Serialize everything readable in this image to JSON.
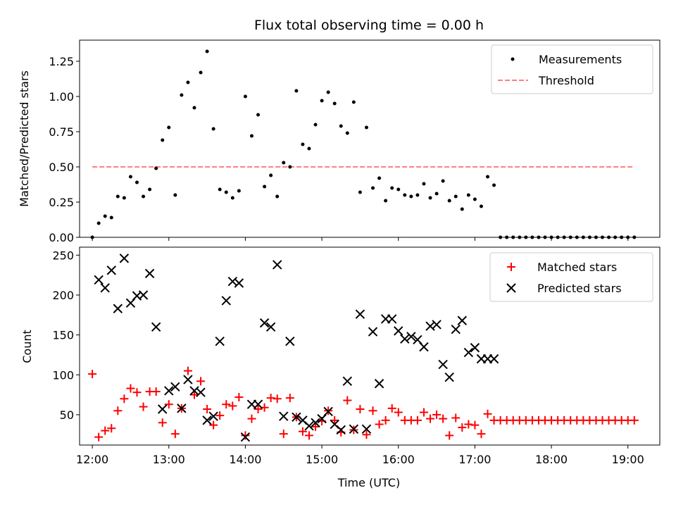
{
  "chart_data": [
    {
      "type": "scatter",
      "title": "Flux total observing time = 0.00 h",
      "xlabel": "",
      "ylabel": "Matched/Predicted stars",
      "ylim": [
        0,
        1.4
      ],
      "yticks": [
        "0.00",
        "0.25",
        "0.50",
        "0.75",
        "1.00",
        "1.25"
      ],
      "ytick_values": [
        0,
        0.25,
        0.5,
        0.75,
        1.0,
        1.25
      ],
      "xlim": [
        "11:50",
        "19:25"
      ],
      "legend_position": "top-right",
      "threshold": {
        "name": "Threshold",
        "value": 0.5,
        "x_start": "12:00",
        "x_end": "19:05",
        "color": "#ff7f7f"
      },
      "series": [
        {
          "name": "Measurements",
          "color": "#000000",
          "marker": "dot",
          "x": [
            "12:00",
            "12:05",
            "12:10",
            "12:15",
            "12:20",
            "12:25",
            "12:30",
            "12:35",
            "12:40",
            "12:45",
            "12:50",
            "12:55",
            "13:00",
            "13:05",
            "13:10",
            "13:15",
            "13:20",
            "13:25",
            "13:30",
            "13:35",
            "13:40",
            "13:45",
            "13:50",
            "13:55",
            "14:00",
            "14:05",
            "14:10",
            "14:15",
            "14:20",
            "14:25",
            "14:30",
            "14:35",
            "14:40",
            "14:45",
            "14:50",
            "14:55",
            "15:00",
            "15:05",
            "15:10",
            "15:15",
            "15:20",
            "15:25",
            "15:30",
            "15:35",
            "15:40",
            "15:45",
            "15:50",
            "15:55",
            "16:00",
            "16:05",
            "16:10",
            "16:15",
            "16:20",
            "16:25",
            "16:30",
            "16:35",
            "16:40",
            "16:45",
            "16:50",
            "16:55",
            "17:00",
            "17:05",
            "17:10",
            "17:15",
            "17:20",
            "17:25",
            "17:30",
            "17:35",
            "17:40",
            "17:45",
            "17:50",
            "17:55",
            "18:00",
            "18:05",
            "18:10",
            "18:15",
            "18:20",
            "18:25",
            "18:30",
            "18:35",
            "18:40",
            "18:45",
            "18:50",
            "18:55",
            "19:00",
            "19:05"
          ],
          "y": [
            0.0,
            0.1,
            0.15,
            0.14,
            0.29,
            0.28,
            0.43,
            0.39,
            0.29,
            0.34,
            0.49,
            0.69,
            0.78,
            0.3,
            1.01,
            1.1,
            0.92,
            1.17,
            1.32,
            0.77,
            0.34,
            0.32,
            0.28,
            0.33,
            1.0,
            0.72,
            0.87,
            0.36,
            0.44,
            0.29,
            0.53,
            0.5,
            1.04,
            0.66,
            0.63,
            0.8,
            0.97,
            1.03,
            0.95,
            0.79,
            0.74,
            0.96,
            0.32,
            0.78,
            0.35,
            0.42,
            0.26,
            0.35,
            0.34,
            0.3,
            0.29,
            0.3,
            0.38,
            0.28,
            0.31,
            0.4,
            0.26,
            0.29,
            0.2,
            0.3,
            0.27,
            0.22,
            0.43,
            0.37,
            0.0,
            0.0,
            0.0,
            0.0,
            0.0,
            0.0,
            0.0,
            0.0,
            0.0,
            0.0,
            0.0,
            0.0,
            0.0,
            0.0,
            0.0,
            0.0,
            0.0,
            0.0,
            0.0,
            0.0,
            0.0,
            0.0
          ]
        }
      ]
    },
    {
      "type": "scatter",
      "title": "",
      "xlabel": "Time (UTC)",
      "ylabel": "Count",
      "ylim": [
        12,
        260
      ],
      "yticks": [
        "50",
        "100",
        "150",
        "200",
        "250"
      ],
      "ytick_values": [
        50,
        100,
        150,
        200,
        250
      ],
      "xticks": [
        "12:00",
        "13:00",
        "14:00",
        "15:00",
        "16:00",
        "17:00",
        "18:00",
        "19:00"
      ],
      "xlim": [
        "11:50",
        "19:25"
      ],
      "legend_position": "top-right",
      "series": [
        {
          "name": "Matched stars",
          "color": "#ff0000",
          "marker": "plus",
          "x": [
            "12:00",
            "12:05",
            "12:10",
            "12:15",
            "12:20",
            "12:25",
            "12:30",
            "12:35",
            "12:40",
            "12:45",
            "12:50",
            "12:55",
            "13:00",
            "13:05",
            "13:10",
            "13:15",
            "13:20",
            "13:25",
            "13:30",
            "13:35",
            "13:40",
            "13:45",
            "13:50",
            "13:55",
            "14:00",
            "14:05",
            "14:10",
            "14:15",
            "14:20",
            "14:25",
            "14:30",
            "14:35",
            "14:40",
            "14:45",
            "14:50",
            "14:55",
            "15:00",
            "15:05",
            "15:10",
            "15:15",
            "15:20",
            "15:25",
            "15:30",
            "15:35",
            "15:40",
            "15:45",
            "15:50",
            "15:55",
            "16:00",
            "16:05",
            "16:10",
            "16:15",
            "16:20",
            "16:25",
            "16:30",
            "16:35",
            "16:40",
            "16:45",
            "16:50",
            "16:55",
            "17:00",
            "17:05",
            "17:10",
            "17:15",
            "17:20",
            "17:25",
            "17:30",
            "17:35",
            "17:40",
            "17:45",
            "17:50",
            "17:55",
            "18:00",
            "18:05",
            "18:10",
            "18:15",
            "18:20",
            "18:25",
            "18:30",
            "18:35",
            "18:40",
            "18:45",
            "18:50",
            "18:55",
            "19:00",
            "19:05"
          ],
          "y": [
            101,
            22,
            30,
            33,
            55,
            70,
            83,
            78,
            60,
            79,
            79,
            40,
            63,
            26,
            58,
            105,
            75,
            92,
            57,
            37,
            49,
            63,
            61,
            72,
            24,
            45,
            57,
            59,
            71,
            70,
            26,
            71,
            47,
            29,
            24,
            35,
            42,
            55,
            43,
            28,
            68,
            31,
            57,
            25,
            55,
            38,
            43,
            58,
            53,
            43,
            43,
            43,
            53,
            45,
            50,
            45,
            24,
            46,
            34,
            38,
            37,
            26,
            51,
            43,
            43,
            43,
            43,
            43,
            43,
            43,
            43,
            43,
            43,
            43,
            43,
            43,
            43,
            43,
            43,
            43,
            43,
            43,
            43,
            43,
            43,
            43
          ]
        },
        {
          "name": "Predicted stars",
          "color": "#000000",
          "marker": "x",
          "x": [
            "12:05",
            "12:10",
            "12:15",
            "12:20",
            "12:25",
            "12:30",
            "12:35",
            "12:40",
            "12:45",
            "12:50",
            "12:55",
            "13:00",
            "13:05",
            "13:10",
            "13:15",
            "13:20",
            "13:25",
            "13:30",
            "13:35",
            "13:40",
            "13:45",
            "13:50",
            "13:55",
            "14:00",
            "14:05",
            "14:10",
            "14:15",
            "14:20",
            "14:25",
            "14:30",
            "14:35",
            "14:40",
            "14:45",
            "14:50",
            "14:55",
            "15:00",
            "15:05",
            "15:10",
            "15:15",
            "15:20",
            "15:25",
            "15:30",
            "15:35",
            "15:40",
            "15:45",
            "15:50",
            "15:55",
            "16:00",
            "16:05",
            "16:10",
            "16:15",
            "16:20",
            "16:25",
            "16:30",
            "16:35",
            "16:40",
            "16:45",
            "16:50",
            "16:55",
            "17:00",
            "17:05",
            "17:10",
            "17:15"
          ],
          "y": [
            219,
            209,
            231,
            183,
            246,
            190,
            199,
            200,
            227,
            160,
            57,
            80,
            85,
            58,
            94,
            80,
            78,
            43,
            48,
            142,
            193,
            217,
            215,
            22,
            63,
            63,
            165,
            160,
            238,
            48,
            142,
            47,
            43,
            36,
            40,
            45,
            54,
            38,
            31,
            92,
            32,
            176,
            32,
            154,
            89,
            170,
            170,
            155,
            145,
            148,
            144,
            135,
            161,
            163,
            113,
            97,
            157,
            168,
            128,
            134,
            120,
            120,
            120
          ]
        }
      ]
    }
  ]
}
